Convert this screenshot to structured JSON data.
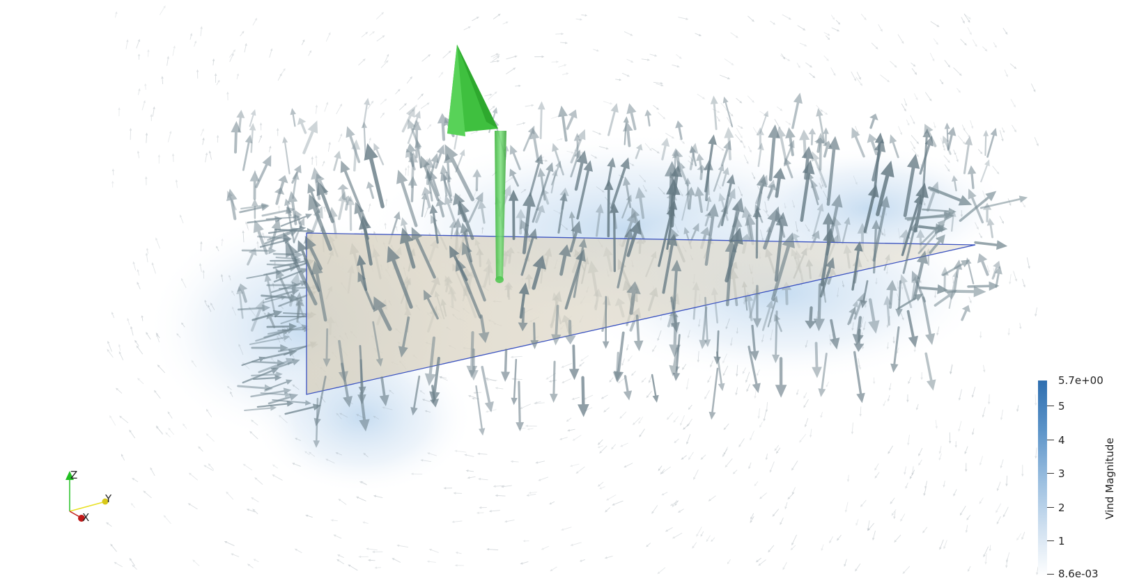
{
  "colorbar": {
    "title": "Vind Magnitude",
    "max_label": "5.7e+00",
    "min_label": "8.6e-03",
    "tick_labels": [
      "5",
      "4",
      "3",
      "2",
      "1"
    ],
    "colors": [
      "#2f6fb0",
      "#5b93c8",
      "#98bddf",
      "#cfe0f0",
      "#ffffff"
    ]
  },
  "orientation_axes": {
    "z_label": "Z",
    "y_label": "Y",
    "x_label": "X",
    "z_color": "#22c022",
    "y_color": "#e8e020",
    "x_color": "#c01818"
  },
  "scene": {
    "glyph_color": "#7a8f98",
    "highlight_glyph_color": "#3ec63e",
    "slice_color": "#d8d2c4",
    "slice_edge_color": "#3a52c0",
    "halo_color": "#cfe0f2"
  }
}
